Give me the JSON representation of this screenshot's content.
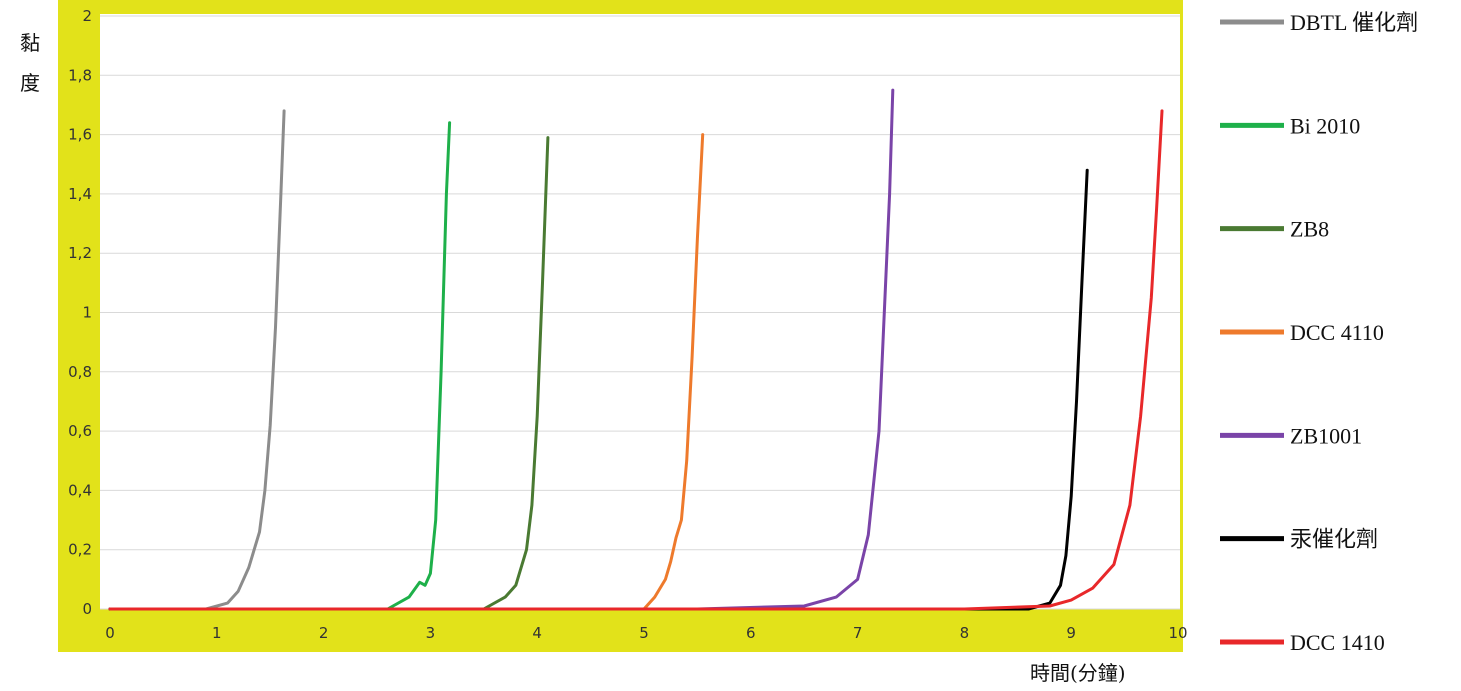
{
  "chart_data": {
    "type": "line",
    "title": "",
    "xlabel": "時間(分鐘)",
    "ylabel": "黏度",
    "xlim": [
      0,
      10
    ],
    "ylim": [
      0,
      2
    ],
    "x_ticks": [
      {
        "value": 0,
        "label": "0"
      },
      {
        "value": 1,
        "label": "1"
      },
      {
        "value": 2,
        "label": "2"
      },
      {
        "value": 3,
        "label": "3"
      },
      {
        "value": 4,
        "label": "4"
      },
      {
        "value": 5,
        "label": "5"
      },
      {
        "value": 6,
        "label": "6"
      },
      {
        "value": 7,
        "label": "7"
      },
      {
        "value": 8,
        "label": "8"
      },
      {
        "value": 9,
        "label": "9"
      },
      {
        "value": 10,
        "label": "10"
      }
    ],
    "y_ticks": [
      {
        "value": 0,
        "label": "0"
      },
      {
        "value": 0.2,
        "label": "0,2"
      },
      {
        "value": 0.4,
        "label": "0,4"
      },
      {
        "value": 0.6,
        "label": "0,6"
      },
      {
        "value": 0.8,
        "label": "0,8"
      },
      {
        "value": 1,
        "label": "1"
      },
      {
        "value": 1.2,
        "label": "1,2"
      },
      {
        "value": 1.4,
        "label": "1,4"
      },
      {
        "value": 1.6,
        "label": "1,6"
      },
      {
        "value": 1.8,
        "label": "1,8"
      },
      {
        "value": 2,
        "label": "2"
      }
    ],
    "grid": true,
    "legend_position": "right",
    "plot_background": "#ffffff",
    "frame_color": "#e2e21a",
    "series": [
      {
        "name": "DBTL 催化劑",
        "color": "#8c8c8c",
        "x": [
          0,
          0.9,
          1.1,
          1.2,
          1.3,
          1.4,
          1.45,
          1.5,
          1.55,
          1.6,
          1.63
        ],
        "y": [
          0,
          0,
          0.02,
          0.06,
          0.14,
          0.26,
          0.4,
          0.62,
          0.95,
          1.4,
          1.68
        ]
      },
      {
        "name": "Bi 2010",
        "color": "#1eb04a",
        "x": [
          0,
          2.6,
          2.8,
          2.9,
          2.95,
          3.0,
          3.05,
          3.1,
          3.15,
          3.18
        ],
        "y": [
          0,
          0,
          0.04,
          0.09,
          0.08,
          0.12,
          0.3,
          0.8,
          1.4,
          1.64
        ]
      },
      {
        "name": "ZB8",
        "color": "#4a7a32",
        "x": [
          0,
          3.5,
          3.7,
          3.8,
          3.9,
          3.95,
          4.0,
          4.05,
          4.1
        ],
        "y": [
          0,
          0,
          0.04,
          0.08,
          0.2,
          0.35,
          0.65,
          1.1,
          1.59
        ]
      },
      {
        "name": "DCC 4110",
        "color": "#ee7a2c",
        "x": [
          0,
          5.0,
          5.1,
          5.2,
          5.25,
          5.3,
          5.35,
          5.4,
          5.45,
          5.5,
          5.55
        ],
        "y": [
          0,
          0,
          0.04,
          0.1,
          0.16,
          0.24,
          0.3,
          0.5,
          0.85,
          1.25,
          1.6
        ]
      },
      {
        "name": "ZB1001",
        "color": "#7a44a8",
        "x": [
          0,
          5.5,
          6.5,
          6.8,
          7.0,
          7.1,
          7.2,
          7.25,
          7.3,
          7.33
        ],
        "y": [
          0,
          0,
          0.01,
          0.04,
          0.1,
          0.25,
          0.6,
          1.0,
          1.4,
          1.75
        ]
      },
      {
        "name": "汞催化劑",
        "color": "#000000",
        "x": [
          0,
          8.6,
          8.8,
          8.9,
          8.95,
          9.0,
          9.05,
          9.1,
          9.15
        ],
        "y": [
          0,
          0,
          0.02,
          0.08,
          0.18,
          0.38,
          0.7,
          1.1,
          1.48
        ]
      },
      {
        "name": "DCC 1410",
        "color": "#e8282a",
        "x": [
          0,
          8.0,
          8.8,
          9.0,
          9.2,
          9.4,
          9.55,
          9.65,
          9.75,
          9.8,
          9.85
        ],
        "y": [
          0,
          0,
          0.01,
          0.03,
          0.07,
          0.15,
          0.35,
          0.65,
          1.05,
          1.35,
          1.68
        ]
      }
    ]
  }
}
